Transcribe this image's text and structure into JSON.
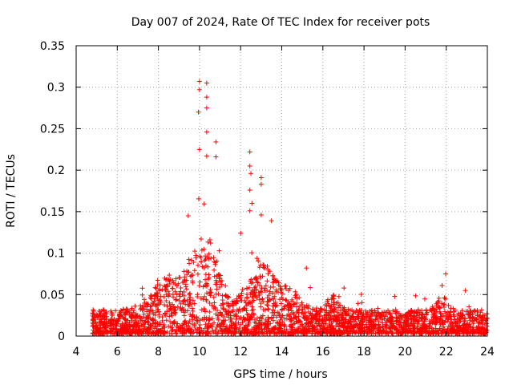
{
  "chart_data": {
    "type": "scatter",
    "title": "Day 007 of 2024, Rate Of TEC Index for receiver pots",
    "xlabel": "GPS time / hours",
    "ylabel": "ROTI / TECUs",
    "xlim": [
      4,
      24
    ],
    "ylim": [
      0,
      0.35
    ],
    "xticks": [
      "4",
      "6",
      "8",
      "10",
      "12",
      "14",
      "16",
      "18",
      "20",
      "22",
      "24"
    ],
    "yticks": [
      "0",
      "0.05",
      "0.1",
      "0.15",
      "0.2",
      "0.25",
      "0.3",
      "0.35"
    ],
    "grid": true,
    "marker": "+",
    "color": "#ff0000",
    "series": [
      {
        "name": "ROTI",
        "x_start": 4.8,
        "x_end": 24.0,
        "notable_points": [
          {
            "x": 10.0,
            "y": 0.307
          },
          {
            "x": 10.35,
            "y": 0.305
          },
          {
            "x": 10.0,
            "y": 0.297
          },
          {
            "x": 10.35,
            "y": 0.288
          },
          {
            "x": 10.35,
            "y": 0.275
          },
          {
            "x": 9.95,
            "y": 0.27
          },
          {
            "x": 10.35,
            "y": 0.246
          },
          {
            "x": 10.8,
            "y": 0.234
          },
          {
            "x": 10.0,
            "y": 0.225
          },
          {
            "x": 12.45,
            "y": 0.222
          },
          {
            "x": 10.8,
            "y": 0.216
          },
          {
            "x": 10.35,
            "y": 0.217
          },
          {
            "x": 12.45,
            "y": 0.205
          },
          {
            "x": 13.0,
            "y": 0.191
          },
          {
            "x": 12.5,
            "y": 0.196
          },
          {
            "x": 13.0,
            "y": 0.183
          },
          {
            "x": 12.45,
            "y": 0.176
          },
          {
            "x": 12.55,
            "y": 0.16
          },
          {
            "x": 12.45,
            "y": 0.151
          },
          {
            "x": 13.0,
            "y": 0.146
          },
          {
            "x": 9.45,
            "y": 0.145
          },
          {
            "x": 13.5,
            "y": 0.139
          },
          {
            "x": 12.0,
            "y": 0.124
          },
          {
            "x": 15.2,
            "y": 0.082
          },
          {
            "x": 21.8,
            "y": 0.061
          },
          {
            "x": 16.5,
            "y": 0.049
          }
        ],
        "baseline_band": {
          "from_x": 4.8,
          "to_x": 24.0,
          "typical_y_min": 0.003,
          "typical_y_max": 0.03
        }
      }
    ]
  }
}
